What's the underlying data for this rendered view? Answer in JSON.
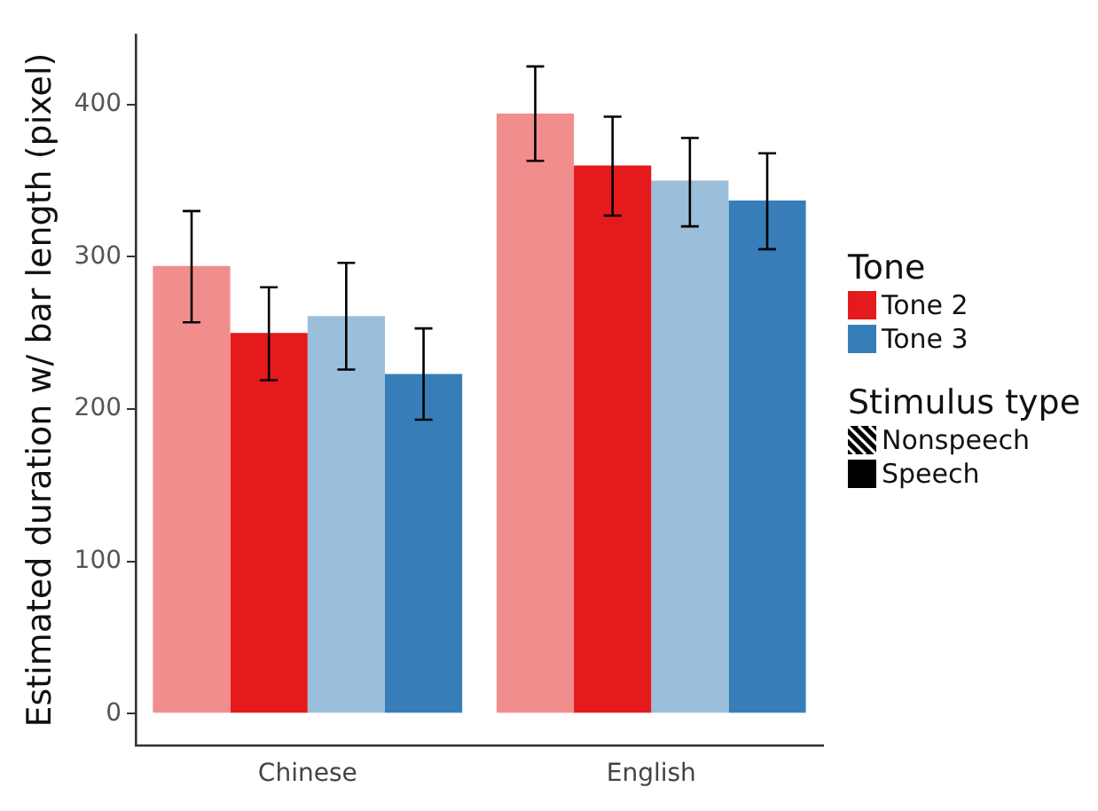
{
  "chart_data": {
    "type": "bar",
    "ylabel": "Estimated duration w/ bar length (pixel)",
    "categories": [
      "Chinese",
      "English"
    ],
    "series": [
      {
        "color": "#f28d8e",
        "values": [
          294,
          394
        ],
        "errors": [
          [
            257,
            330
          ],
          [
            363,
            425
          ]
        ]
      },
      {
        "name": "Tone 2",
        "color": "#e41a1c",
        "values": [
          250,
          360
        ],
        "errors": [
          [
            219,
            280
          ],
          [
            327,
            392
          ]
        ]
      },
      {
        "color": "#9bbedb",
        "values": [
          261,
          350
        ],
        "errors": [
          [
            226,
            296
          ],
          [
            320,
            378
          ]
        ]
      },
      {
        "name": "Tone 3",
        "color": "#377eb8",
        "values": [
          223,
          337
        ],
        "errors": [
          [
            193,
            253
          ],
          [
            305,
            368
          ]
        ]
      }
    ],
    "ylim": [
      -21,
      446
    ],
    "yticks": [
      0,
      100,
      200,
      300,
      400
    ],
    "grid": false,
    "legend": "right",
    "legend_title": "Tone",
    "annotations": [
      "Stimulus type",
      "Nonspeech",
      "Speech"
    ]
  }
}
